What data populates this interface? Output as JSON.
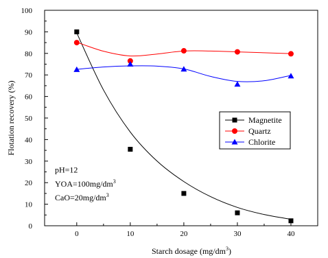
{
  "chart_data": {
    "type": "scatter",
    "xlabel": "Starch dosage (mg/dm",
    "xlabel_sup": "3",
    "xlabel_end": ")",
    "ylabel": "Flotation recovery (%)",
    "xlim": [
      -6,
      45
    ],
    "ylim": [
      0,
      100
    ],
    "xticks": [
      0,
      10,
      20,
      30,
      40
    ],
    "yticks": [
      0,
      10,
      20,
      30,
      40,
      50,
      60,
      70,
      80,
      90,
      100
    ],
    "grid": false,
    "legend_position": "right-middle",
    "series": [
      {
        "name": "Magnetite",
        "marker": "square",
        "color": "#000000",
        "x": [
          0,
          10,
          20,
          30,
          40
        ],
        "y": [
          90,
          35.5,
          15,
          6,
          2.3
        ],
        "curve": [
          [
            0,
            89.5
          ],
          [
            5,
            63
          ],
          [
            10,
            43.5
          ],
          [
            15,
            30
          ],
          [
            20,
            20.5
          ],
          [
            25,
            13.5
          ],
          [
            30,
            8.5
          ],
          [
            35,
            5.2
          ],
          [
            40,
            3
          ]
        ]
      },
      {
        "name": "Quartz",
        "marker": "circle",
        "color": "#ff0000",
        "x": [
          0,
          10,
          20,
          30,
          40
        ],
        "y": [
          85,
          76.5,
          81.2,
          80.7,
          79.8
        ],
        "curve": [
          [
            0,
            85.2
          ],
          [
            5,
            81
          ],
          [
            10,
            78.8
          ],
          [
            15,
            79.7
          ],
          [
            20,
            81.1
          ],
          [
            25,
            81.1
          ],
          [
            30,
            80.7
          ],
          [
            35,
            80.3
          ],
          [
            40,
            79.9
          ]
        ]
      },
      {
        "name": "Chlorite",
        "marker": "triangle",
        "color": "#0000ff",
        "x": [
          0,
          10,
          20,
          30,
          40
        ],
        "y": [
          72.5,
          75,
          72.7,
          65.7,
          69.5
        ],
        "curve": [
          [
            0,
            72.6
          ],
          [
            5,
            73.7
          ],
          [
            10,
            74.2
          ],
          [
            15,
            74.1
          ],
          [
            20,
            72.8
          ],
          [
            25,
            69.3
          ],
          [
            30,
            67
          ],
          [
            35,
            67.3
          ],
          [
            40,
            69.8
          ]
        ]
      }
    ],
    "annotations": [
      {
        "text": "pH=12",
        "sup": "",
        "x": -1.5,
        "y": 26
      },
      {
        "text": "YOA=100mg/dm",
        "sup": "3",
        "x": -1.5,
        "y": 19.5
      },
      {
        "text": "CaO=20mg/dm",
        "sup": "3",
        "x": -1.5,
        "y": 13
      }
    ]
  }
}
